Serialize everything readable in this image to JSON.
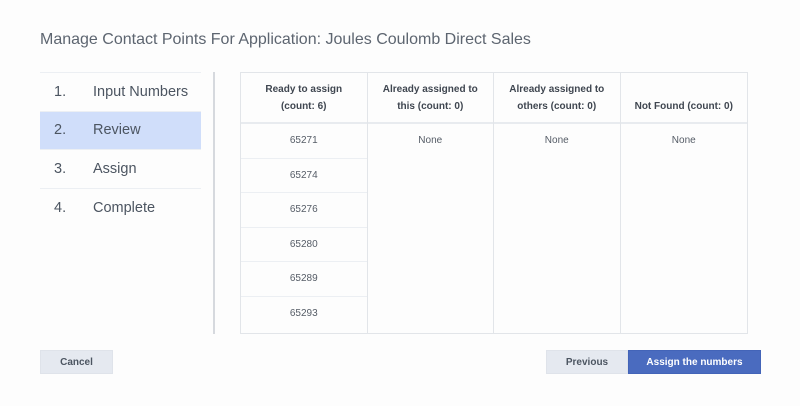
{
  "title": "Manage Contact Points For Application: Joules Coulomb Direct Sales",
  "steps": [
    {
      "num": "1.",
      "label": "Input Numbers"
    },
    {
      "num": "2.",
      "label": "Review",
      "active": true
    },
    {
      "num": "3.",
      "label": "Assign"
    },
    {
      "num": "4.",
      "label": "Complete"
    }
  ],
  "table": {
    "columns": [
      {
        "header": "Ready to assign (count: 6)",
        "values": [
          "65271",
          "65274",
          "65276",
          "65280",
          "65289",
          "65293"
        ]
      },
      {
        "header": "Already assigned to this (count: 0)",
        "values": [
          "None"
        ]
      },
      {
        "header": "Already assigned to others (count: 0)",
        "values": [
          "None"
        ]
      },
      {
        "header": "Not Found (count: 0)",
        "values": [
          "None"
        ]
      }
    ]
  },
  "buttons": {
    "cancel": "Cancel",
    "previous": "Previous",
    "assign": "Assign the numbers"
  },
  "colors": {
    "accent": "#4a6bbf",
    "active_step": "#d0defa"
  }
}
